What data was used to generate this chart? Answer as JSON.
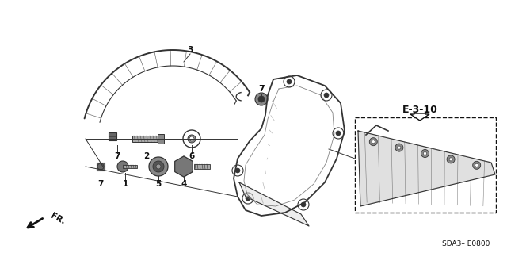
{
  "bg_color": "#ffffff",
  "ref_label": "E-3-10",
  "part_code": "SDA3– E0800",
  "fr_label": "FR.",
  "line_color": "#333333",
  "label_color": "#111111"
}
